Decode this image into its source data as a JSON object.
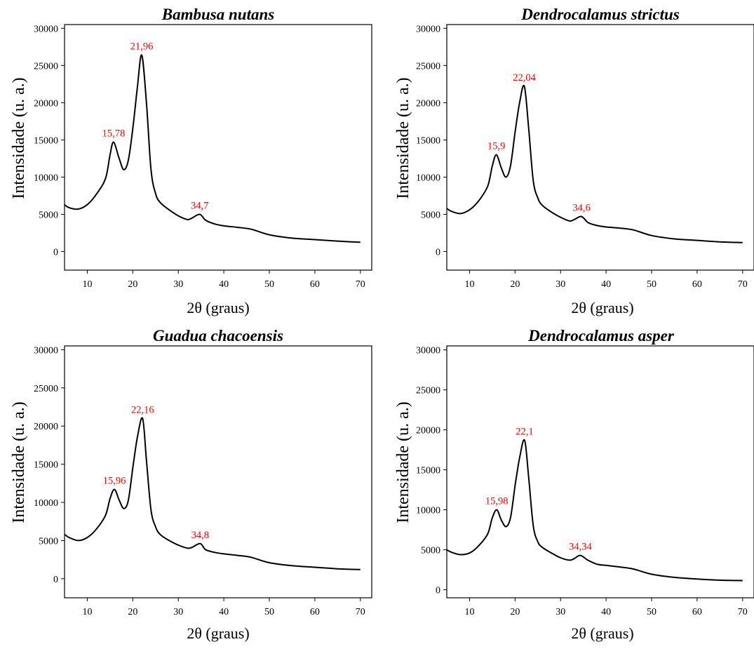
{
  "chart_data": [
    {
      "type": "line",
      "title": "Bambusa nutans",
      "xlabel": "2θ (graus)",
      "ylabel": "Intensidade (u. a.)",
      "xlim": [
        5,
        72.5
      ],
      "ylim": [
        -2500,
        30500
      ],
      "xticks": [
        10,
        20,
        30,
        40,
        50,
        60,
        70
      ],
      "yticks": [
        0,
        5000,
        10000,
        15000,
        20000,
        25000,
        30000
      ],
      "peak_label_color": "#ff0000",
      "series": [
        {
          "x": [
            5,
            6,
            8,
            10,
            12,
            14,
            15,
            15.78,
            17,
            18,
            19,
            20,
            21,
            21.96,
            23,
            24,
            25,
            26,
            28,
            30,
            32,
            33,
            34.7,
            36,
            38,
            40,
            43,
            46,
            50,
            55,
            60,
            65,
            70
          ],
          "y": [
            6300,
            5900,
            5700,
            6300,
            7700,
            9800,
            13000,
            14700,
            12500,
            11000,
            12200,
            16500,
            22000,
            26400,
            20000,
            11000,
            7800,
            6600,
            5600,
            4800,
            4300,
            4500,
            5000,
            4200,
            3700,
            3450,
            3250,
            3000,
            2250,
            1800,
            1600,
            1400,
            1250
          ]
        }
      ],
      "peaks": [
        {
          "x": 15.78,
          "y": 14700,
          "label": "15,78"
        },
        {
          "x": 21.96,
          "y": 26400,
          "label": "21,96"
        },
        {
          "x": 34.7,
          "y": 5000,
          "label": "34,7"
        }
      ]
    },
    {
      "type": "line",
      "title": "Dendrocalamus strictus",
      "xlabel": "2θ (graus)",
      "ylabel": "Intensidade (u. a.)",
      "xlim": [
        5,
        72.5
      ],
      "ylim": [
        -2500,
        30500
      ],
      "xticks": [
        10,
        20,
        30,
        40,
        50,
        60,
        70
      ],
      "yticks": [
        0,
        5000,
        10000,
        15000,
        20000,
        25000,
        30000
      ],
      "peak_label_color": "#ff0000",
      "series": [
        {
          "x": [
            5,
            6,
            8,
            10,
            12,
            14,
            15,
            15.9,
            17,
            18,
            19,
            20,
            21,
            22.04,
            23,
            24,
            25,
            26,
            28,
            30,
            32,
            33,
            34.6,
            36,
            38,
            40,
            43,
            46,
            50,
            55,
            60,
            65,
            70
          ],
          "y": [
            5800,
            5400,
            5100,
            5600,
            6800,
            8800,
            11500,
            13000,
            11200,
            10000,
            11500,
            16000,
            20000,
            22200,
            16500,
            9500,
            7200,
            6200,
            5300,
            4600,
            4100,
            4300,
            4700,
            3900,
            3500,
            3300,
            3150,
            2900,
            2150,
            1700,
            1500,
            1300,
            1200
          ]
        }
      ],
      "peaks": [
        {
          "x": 15.9,
          "y": 13000,
          "label": "15,9"
        },
        {
          "x": 22.04,
          "y": 22200,
          "label": "22,04"
        },
        {
          "x": 34.6,
          "y": 4700,
          "label": "34,6"
        }
      ]
    },
    {
      "type": "line",
      "title": "Guadua chacoensis",
      "xlabel": "2θ (graus)",
      "ylabel": "Intensidade (u. a.)",
      "xlim": [
        5,
        72.5
      ],
      "ylim": [
        -2500,
        30500
      ],
      "xticks": [
        10,
        20,
        30,
        40,
        50,
        60,
        70
      ],
      "yticks": [
        0,
        5000,
        10000,
        15000,
        20000,
        25000,
        30000
      ],
      "peak_label_color": "#ff0000",
      "series": [
        {
          "x": [
            5,
            6,
            8,
            10,
            12,
            14,
            15,
            15.96,
            17,
            18,
            19,
            20,
            21,
            22.16,
            23,
            24,
            25,
            26,
            28,
            30,
            32,
            33,
            34.8,
            36,
            38,
            40,
            43,
            46,
            50,
            55,
            60,
            65,
            70
          ],
          "y": [
            5800,
            5400,
            5000,
            5400,
            6500,
            8300,
            10500,
            11700,
            10300,
            9200,
            10200,
            14500,
            18500,
            21000,
            15500,
            9000,
            6800,
            5800,
            5000,
            4400,
            4000,
            4100,
            4600,
            3800,
            3450,
            3250,
            3050,
            2800,
            2100,
            1700,
            1500,
            1300,
            1200
          ]
        }
      ],
      "peaks": [
        {
          "x": 15.96,
          "y": 11700,
          "label": "15,96"
        },
        {
          "x": 22.16,
          "y": 21000,
          "label": "22,16"
        },
        {
          "x": 34.8,
          "y": 4600,
          "label": "34,8"
        }
      ]
    },
    {
      "type": "line",
      "title": "Dendrocalamus asper",
      "xlabel": "2θ (graus)",
      "ylabel": "Intensidade (u. a.)",
      "xlim": [
        5,
        72.5
      ],
      "ylim": [
        -1000,
        30500
      ],
      "xticks": [
        10,
        20,
        30,
        40,
        50,
        60,
        70
      ],
      "yticks": [
        0,
        5000,
        10000,
        15000,
        20000,
        25000,
        30000
      ],
      "peak_label_color": "#ff0000",
      "series": [
        {
          "x": [
            5,
            6,
            8,
            10,
            12,
            14,
            15,
            15.98,
            17,
            18,
            19,
            20,
            21,
            22.1,
            23,
            24,
            25,
            26,
            28,
            30,
            32,
            33,
            34.34,
            36,
            38,
            40,
            43,
            46,
            50,
            55,
            60,
            65,
            70
          ],
          "y": [
            5000,
            4700,
            4400,
            4600,
            5500,
            7000,
            9000,
            10000,
            8700,
            7900,
            9000,
            13000,
            16500,
            18700,
            14000,
            8000,
            6000,
            5300,
            4600,
            4000,
            3700,
            3900,
            4300,
            3700,
            3200,
            3050,
            2850,
            2600,
            1950,
            1550,
            1350,
            1200,
            1150
          ]
        }
      ],
      "peaks": [
        {
          "x": 15.98,
          "y": 10000,
          "label": "15,98"
        },
        {
          "x": 22.1,
          "y": 18700,
          "label": "22,1"
        },
        {
          "x": 34.34,
          "y": 4300,
          "label": "34,34"
        }
      ]
    }
  ]
}
